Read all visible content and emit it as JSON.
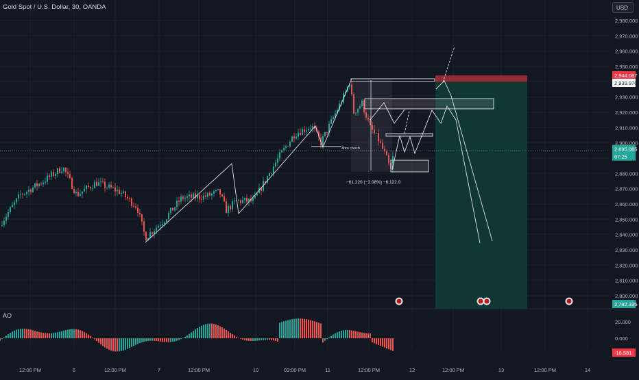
{
  "header": {
    "title": "Gold Spot / U.S. Dollar, 30, OANDA",
    "currency_button": "USD"
  },
  "oscillator": {
    "label": "AO"
  },
  "colors": {
    "bg": "#131722",
    "up": "#26a69a",
    "down": "#ef5350",
    "grid": "#1e222d",
    "tp_zone": "#0f3a36",
    "sl_zone": "#a32f35"
  },
  "price_axis": {
    "ticks": [
      "2,980.000",
      "2,970.000",
      "2,960.000",
      "2,950.000",
      "2,930.000",
      "2,920.000",
      "2,910.000",
      "2,900.000",
      "2,880.000",
      "2,870.000",
      "2,860.000",
      "2,850.000",
      "2,840.000",
      "2,830.000",
      "2,820.000",
      "2,810.000",
      "2,800.000"
    ],
    "badges": {
      "sl": "2,944.087",
      "entry": "2,939.970",
      "current": "2,895.085",
      "countdown": "07:25",
      "target": "2,792.335"
    }
  },
  "ao_axis": {
    "ticks": [
      "20.000",
      "0.000"
    ],
    "current": "-16.581"
  },
  "time_axis": [
    "12:00 PM",
    "6",
    "12:00 PM",
    "7",
    "12:00 PM",
    "10",
    "03:00 PM",
    "11",
    "12:00 PM",
    "12",
    "12:00 PM",
    "13",
    "12:00 PM",
    "14"
  ],
  "annotations": {
    "choch_label": "4hrs choch",
    "measure_label": "−61.220 (−2.08%) −6,122.0"
  },
  "chart_data": {
    "type": "candlestick",
    "title": "Gold Spot / U.S. Dollar, 30, OANDA",
    "y_range": [
      2792,
      2985
    ],
    "approx_closes": [
      2848,
      2866,
      2875,
      2884,
      2870,
      2872,
      2868,
      2860,
      2845,
      2838,
      2852,
      2866,
      2862,
      2868,
      2860,
      2874,
      2884,
      2862,
      2858,
      2872,
      2878,
      2893,
      2906,
      2910,
      2902,
      2918,
      2934,
      2942,
      2915,
      2920,
      2906,
      2898,
      2885,
      2893,
      2895
    ],
    "position": {
      "entry": 2939.97,
      "stop": 2944.087,
      "target": 2792.335,
      "current": 2895.085
    },
    "measure": {
      "change": -61.22,
      "percent": -2.08,
      "ticks": -6122.0
    },
    "ao": {
      "range": [
        -20,
        27
      ],
      "last": -16.581
    }
  }
}
